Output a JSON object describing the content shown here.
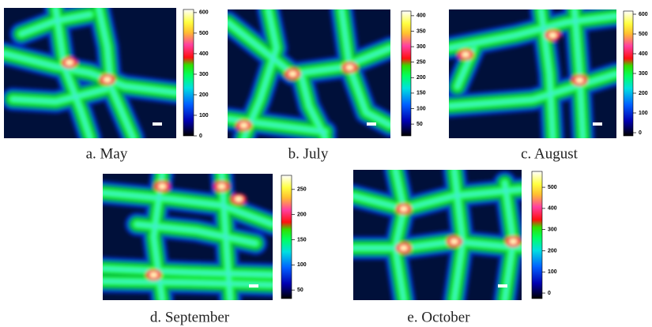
{
  "panels": [
    {
      "caption": "a. May",
      "colorbar": {
        "lim": [
          0,
          615
        ],
        "ticks": [
          0,
          100,
          200,
          300,
          400,
          500,
          600
        ]
      }
    },
    {
      "caption": "b. July",
      "colorbar": {
        "lim": [
          12,
          415
        ],
        "ticks": [
          50,
          100,
          150,
          200,
          250,
          300,
          350,
          400
        ]
      }
    },
    {
      "caption": "c. August",
      "colorbar": {
        "lim": [
          -16,
          616
        ],
        "ticks": [
          0,
          100,
          200,
          300,
          400,
          500,
          600
        ]
      }
    },
    {
      "caption": "d. September",
      "colorbar": {
        "lim": [
          33,
          278
        ],
        "ticks": [
          50,
          100,
          150,
          200,
          250
        ]
      }
    },
    {
      "caption": "e. October",
      "colorbar": {
        "lim": [
          -26,
          575
        ],
        "ticks": [
          0,
          100,
          200,
          300,
          400,
          500
        ]
      }
    }
  ]
}
